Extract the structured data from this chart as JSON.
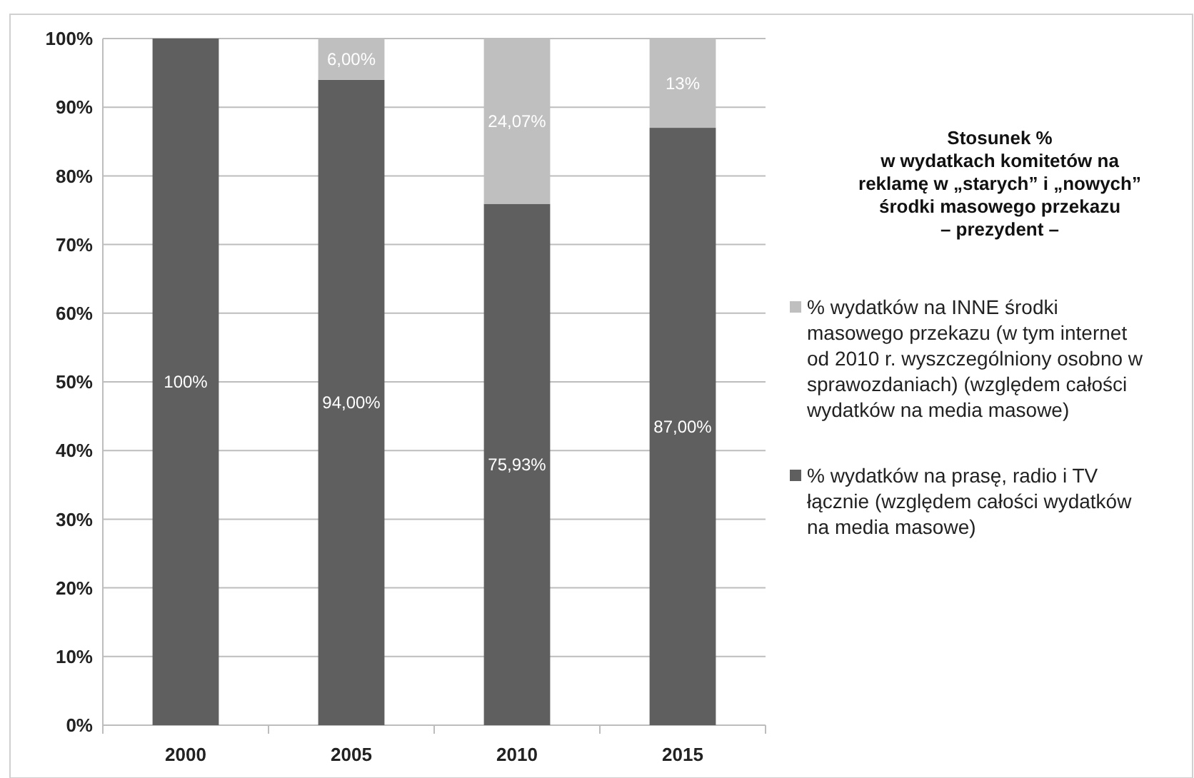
{
  "chart_data": {
    "type": "bar",
    "stacked": true,
    "title": "Stosunek %\nw wydatkach komitetów na\nreklamę w „starych” i „nowych”\nśrodki masowego przekazu\n– prezydent –",
    "categories": [
      "2000",
      "2005",
      "2010",
      "2015"
    ],
    "series": [
      {
        "name": "% wydatków na prasę, radio i TV łącznie (względem całości wydatków na media masowe)",
        "color": "#5f5f5f",
        "values": [
          100,
          94,
          75.93,
          87
        ],
        "value_labels": [
          "100%",
          "94,00%",
          "75,93%",
          "87,00%"
        ]
      },
      {
        "name": "% wydatków na INNE środki masowego przekazu (w tym internet od 2010 r. wyszczególniony osobno w sprawozdaniach) (względem całości wydatków na media masowe)",
        "color": "#bfbfbf",
        "values": [
          0,
          6,
          24.07,
          13
        ],
        "value_labels": [
          null,
          "6,00%",
          "24,07%",
          "13%"
        ]
      }
    ],
    "ylim": [
      0,
      100
    ],
    "yticks": [
      {
        "value": 0,
        "label": "0%"
      },
      {
        "value": 10,
        "label": "10%"
      },
      {
        "value": 20,
        "label": "20%"
      },
      {
        "value": 30,
        "label": "30%"
      },
      {
        "value": 40,
        "label": "40%"
      },
      {
        "value": 50,
        "label": "50%"
      },
      {
        "value": 60,
        "label": "60%"
      },
      {
        "value": 70,
        "label": "70%"
      },
      {
        "value": 80,
        "label": "80%"
      },
      {
        "value": 90,
        "label": "90%"
      },
      {
        "value": 100,
        "label": "100%"
      }
    ],
    "grid": "y",
    "legend": "right"
  }
}
